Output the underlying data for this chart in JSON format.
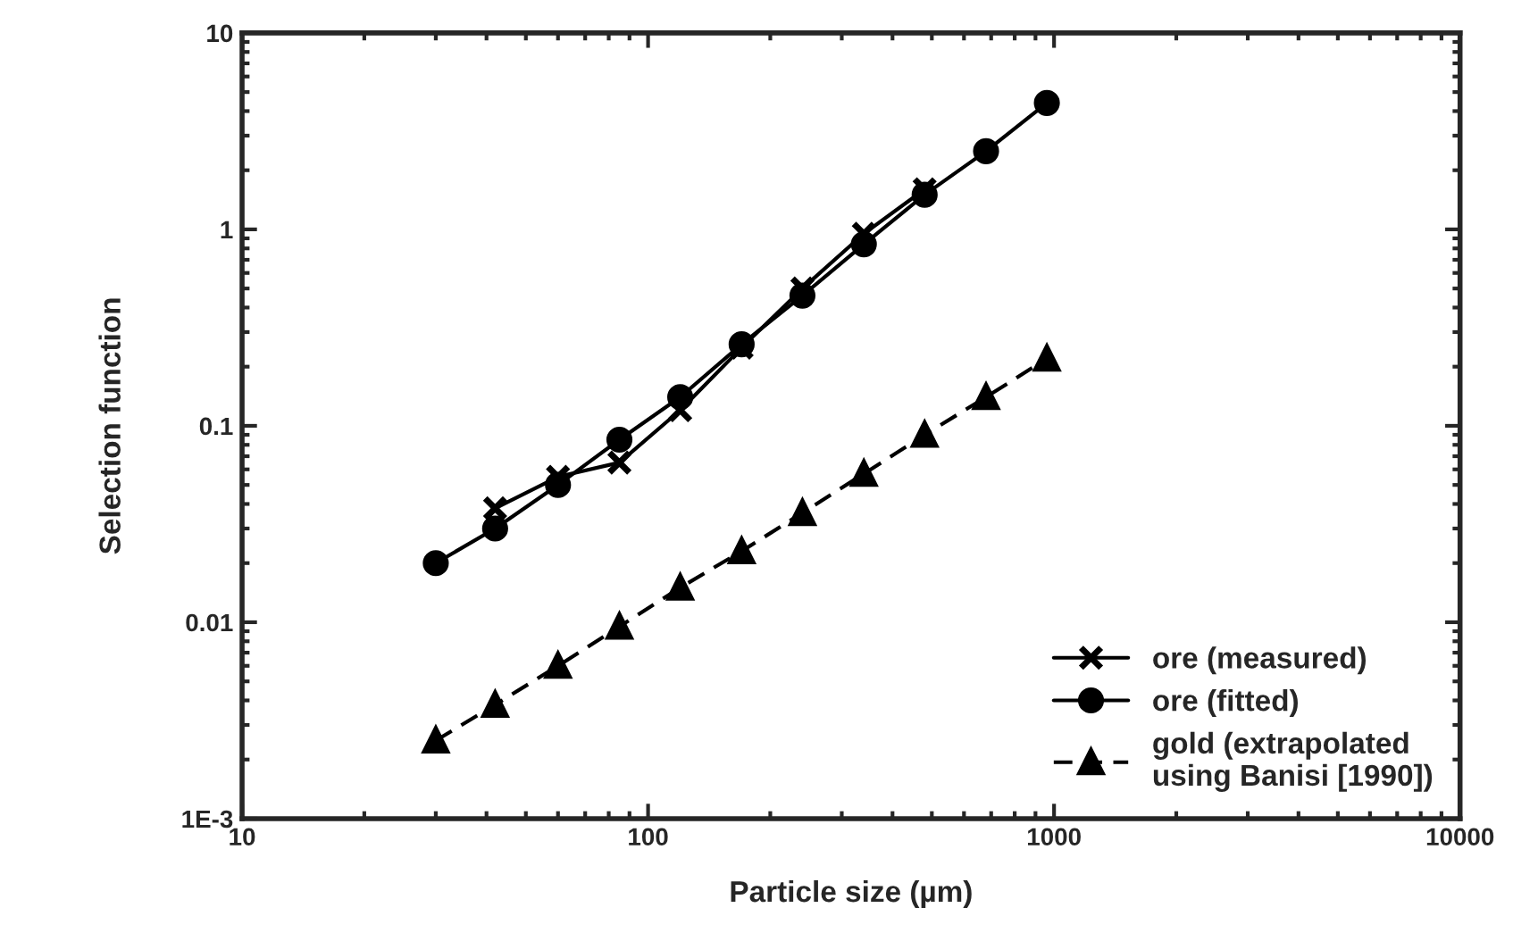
{
  "chart_data": {
    "type": "line",
    "xlabel": "Particle size (µm)",
    "ylabel": "Selection function",
    "log": "xy",
    "xlim": [
      10,
      10000
    ],
    "xticks": [
      10,
      100,
      1000,
      10000
    ],
    "ylim": [
      0.001,
      10
    ],
    "yticks": [
      {
        "value": 0.001,
        "label": "1E-3"
      },
      0.01,
      0.1,
      1,
      10
    ],
    "grid": false,
    "legend": "bottom right",
    "series": [
      {
        "name": "ore (measured)",
        "color": "#000000",
        "marker": "cross",
        "line_style": "solid",
        "x": [
          42,
          60,
          85,
          120,
          170,
          240,
          340,
          480
        ],
        "values": [
          0.038,
          0.055,
          0.065,
          0.12,
          0.25,
          0.5,
          0.95,
          1.6
        ]
      },
      {
        "name": "ore (fitted)",
        "color": "#000000",
        "marker": "circle",
        "line_style": "solid",
        "x": [
          30,
          42,
          60,
          85,
          120,
          170,
          240,
          340,
          480,
          680,
          960
        ],
        "values": [
          0.02,
          0.03,
          0.05,
          0.085,
          0.14,
          0.26,
          0.46,
          0.84,
          1.5,
          2.5,
          4.4
        ]
      },
      {
        "name": "gold (extrapolated\nusing Banisi [1990])",
        "color": "#000000",
        "marker": "triangle",
        "line_style": "dashed",
        "x": [
          30,
          42,
          60,
          85,
          120,
          170,
          240,
          340,
          480,
          680,
          960
        ],
        "values": [
          0.0025,
          0.0038,
          0.006,
          0.0095,
          0.015,
          0.023,
          0.036,
          0.057,
          0.09,
          0.14,
          0.22
        ]
      }
    ]
  }
}
